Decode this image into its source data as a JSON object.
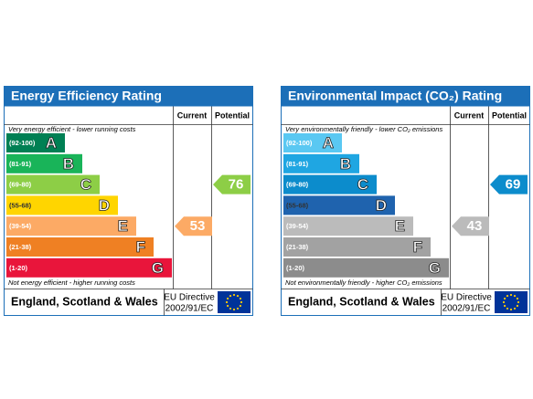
{
  "chart_data": [
    {
      "type": "epc",
      "title": "Energy Efficiency Rating",
      "columns": [
        "Current",
        "Potential"
      ],
      "top_note": "Very energy efficient - lower running costs",
      "bottom_note": "Not energy efficient - higher running costs",
      "categories": [
        "(92-100)",
        "(81-91)",
        "(69-80)",
        "(55-68)",
        "(39-54)",
        "(21-38)",
        "(1-20)"
      ],
      "letters": [
        "A",
        "B",
        "C",
        "D",
        "E",
        "F",
        "G"
      ],
      "colors": [
        "#008054",
        "#19b459",
        "#8dce46",
        "#ffd500",
        "#fcaa65",
        "#ef8023",
        "#e9153b"
      ],
      "current": 53,
      "potential": 76,
      "region": "England, Scotland & Wales",
      "directive": [
        "EU Directive",
        "2002/91/EC"
      ]
    },
    {
      "type": "epc",
      "title": "Environmental Impact (CO₂) Rating",
      "columns": [
        "Current",
        "Potential"
      ],
      "top_note": "Very environmentally friendly - lower CO₂ emissions",
      "bottom_note": "Not environmentally friendly - higher CO₂ emissions",
      "categories": [
        "(92-100)",
        "(81-91)",
        "(69-80)",
        "(55-68)",
        "(39-54)",
        "(21-38)",
        "(1-20)"
      ],
      "letters": [
        "A",
        "B",
        "C",
        "D",
        "E",
        "F",
        "G"
      ],
      "colors": [
        "#5ac8f2",
        "#1fa6e2",
        "#0c8ccc",
        "#1f63ae",
        "#bbbbbb",
        "#a2a2a2",
        "#8c8c8c"
      ],
      "current": 43,
      "potential": 69,
      "region": "England, Scotland & Wales",
      "directive": [
        "EU Directive",
        "2002/91/EC"
      ]
    }
  ]
}
